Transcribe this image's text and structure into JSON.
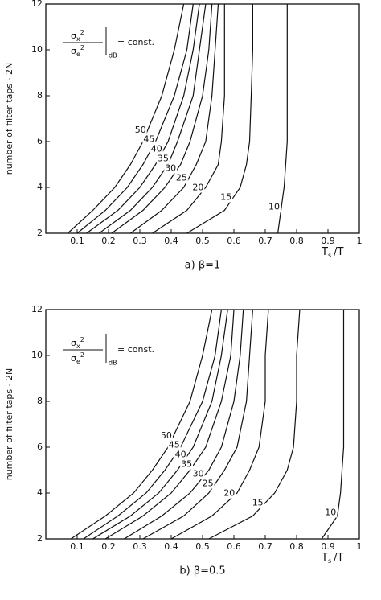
{
  "chart_data": [
    {
      "type": "line",
      "subtitle": "a) β=1",
      "ylabel": "number of filter taps - 2N",
      "xlabel": [
        "T",
        "s",
        "/T"
      ],
      "annotation": [
        "σ",
        "x",
        "2",
        "σ",
        "e",
        "2",
        "dB",
        "= const."
      ],
      "xlim": [
        0,
        1
      ],
      "ylim": [
        2,
        12
      ],
      "xticks": [
        0.1,
        0.2,
        0.3,
        0.4,
        0.5,
        0.6,
        0.7,
        0.8,
        0.9,
        1
      ],
      "yticks": [
        2,
        4,
        6,
        8,
        10,
        12
      ],
      "series": [
        {
          "name": "50",
          "color": "#111",
          "x": [
            0.07,
            0.15,
            0.22,
            0.27,
            0.31,
            0.37,
            0.41,
            0.44
          ],
          "values": [
            2,
            3,
            4,
            5,
            6,
            8,
            10,
            12
          ]
        },
        {
          "name": "45",
          "color": "#111",
          "x": [
            0.1,
            0.19,
            0.26,
            0.31,
            0.35,
            0.41,
            0.45,
            0.47
          ],
          "values": [
            2,
            3,
            4,
            5,
            6,
            8,
            10,
            12
          ]
        },
        {
          "name": "40",
          "color": "#111",
          "x": [
            0.13,
            0.23,
            0.3,
            0.35,
            0.39,
            0.44,
            0.47,
            0.49
          ],
          "values": [
            2,
            3,
            4,
            5,
            6,
            8,
            10,
            12
          ]
        },
        {
          "name": "35",
          "color": "#111",
          "x": [
            0.17,
            0.27,
            0.34,
            0.39,
            0.42,
            0.47,
            0.49,
            0.51
          ],
          "values": [
            2,
            3,
            4,
            5,
            6,
            8,
            10,
            12
          ]
        },
        {
          "name": "30",
          "color": "#111",
          "x": [
            0.21,
            0.31,
            0.38,
            0.43,
            0.46,
            0.5,
            0.52,
            0.53
          ],
          "values": [
            2,
            3,
            4,
            5,
            6,
            8,
            10,
            12
          ]
        },
        {
          "name": "25",
          "color": "#111",
          "x": [
            0.27,
            0.37,
            0.44,
            0.48,
            0.51,
            0.53,
            0.54,
            0.55
          ],
          "values": [
            2,
            3,
            4,
            5,
            6,
            8,
            10,
            12
          ]
        },
        {
          "name": "20",
          "color": "#111",
          "x": [
            0.34,
            0.45,
            0.51,
            0.55,
            0.56,
            0.57,
            0.57,
            0.57
          ],
          "values": [
            2,
            3,
            4,
            5,
            6,
            8,
            10,
            12
          ]
        },
        {
          "name": "15",
          "color": "#111",
          "x": [
            0.45,
            0.57,
            0.62,
            0.64,
            0.65,
            0.655,
            0.66,
            0.66
          ],
          "values": [
            2,
            3,
            4,
            5,
            6,
            8,
            10,
            12
          ]
        },
        {
          "name": "10",
          "color": "#111",
          "x": [
            0.74,
            0.75,
            0.76,
            0.765,
            0.77,
            0.77,
            0.77,
            0.77
          ],
          "values": [
            2,
            3,
            4,
            5,
            6,
            8,
            10,
            12
          ]
        }
      ]
    },
    {
      "type": "line",
      "subtitle": "b) β=0.5",
      "ylabel": "number of filter taps - 2N",
      "xlabel": [
        "T",
        "s",
        "/T"
      ],
      "annotation": [
        "σ",
        "x",
        "2",
        "σ",
        "e",
        "2",
        "dB",
        "= const."
      ],
      "xlim": [
        0,
        1
      ],
      "ylim": [
        2,
        12
      ],
      "xticks": [
        0.1,
        0.2,
        0.3,
        0.4,
        0.5,
        0.6,
        0.7,
        0.8,
        0.9,
        1
      ],
      "yticks": [
        2,
        4,
        6,
        8,
        10,
        12
      ],
      "series": [
        {
          "name": "50",
          "color": "#111",
          "x": [
            0.08,
            0.19,
            0.28,
            0.34,
            0.39,
            0.46,
            0.5,
            0.53
          ],
          "values": [
            2,
            3,
            4,
            5,
            6,
            8,
            10,
            12
          ]
        },
        {
          "name": "45",
          "color": "#111",
          "x": [
            0.12,
            0.23,
            0.32,
            0.38,
            0.43,
            0.5,
            0.54,
            0.56
          ],
          "values": [
            2,
            3,
            4,
            5,
            6,
            8,
            10,
            12
          ]
        },
        {
          "name": "40",
          "color": "#111",
          "x": [
            0.15,
            0.27,
            0.36,
            0.42,
            0.47,
            0.53,
            0.56,
            0.58
          ],
          "values": [
            2,
            3,
            4,
            5,
            6,
            8,
            10,
            12
          ]
        },
        {
          "name": "35",
          "color": "#111",
          "x": [
            0.19,
            0.31,
            0.4,
            0.46,
            0.51,
            0.56,
            0.59,
            0.6
          ],
          "values": [
            2,
            3,
            4,
            5,
            6,
            8,
            10,
            12
          ]
        },
        {
          "name": "30",
          "color": "#111",
          "x": [
            0.25,
            0.37,
            0.46,
            0.52,
            0.56,
            0.6,
            0.62,
            0.63
          ],
          "values": [
            2,
            3,
            4,
            5,
            6,
            8,
            10,
            12
          ]
        },
        {
          "name": "25",
          "color": "#111",
          "x": [
            0.31,
            0.44,
            0.52,
            0.57,
            0.61,
            0.64,
            0.65,
            0.66
          ],
          "values": [
            2,
            3,
            4,
            5,
            6,
            8,
            10,
            12
          ]
        },
        {
          "name": "20",
          "color": "#111",
          "x": [
            0.4,
            0.53,
            0.61,
            0.65,
            0.68,
            0.7,
            0.7,
            0.71
          ],
          "values": [
            2,
            3,
            4,
            5,
            6,
            8,
            10,
            12
          ]
        },
        {
          "name": "15",
          "color": "#111",
          "x": [
            0.52,
            0.66,
            0.73,
            0.77,
            0.79,
            0.8,
            0.8,
            0.81
          ],
          "values": [
            2,
            3,
            4,
            5,
            6,
            8,
            10,
            12
          ]
        },
        {
          "name": "10",
          "color": "#111",
          "x": [
            0.88,
            0.93,
            0.94,
            0.945,
            0.95,
            0.95,
            0.95,
            0.95
          ],
          "values": [
            2,
            3,
            4,
            5,
            6,
            8,
            10,
            12
          ]
        }
      ]
    }
  ]
}
